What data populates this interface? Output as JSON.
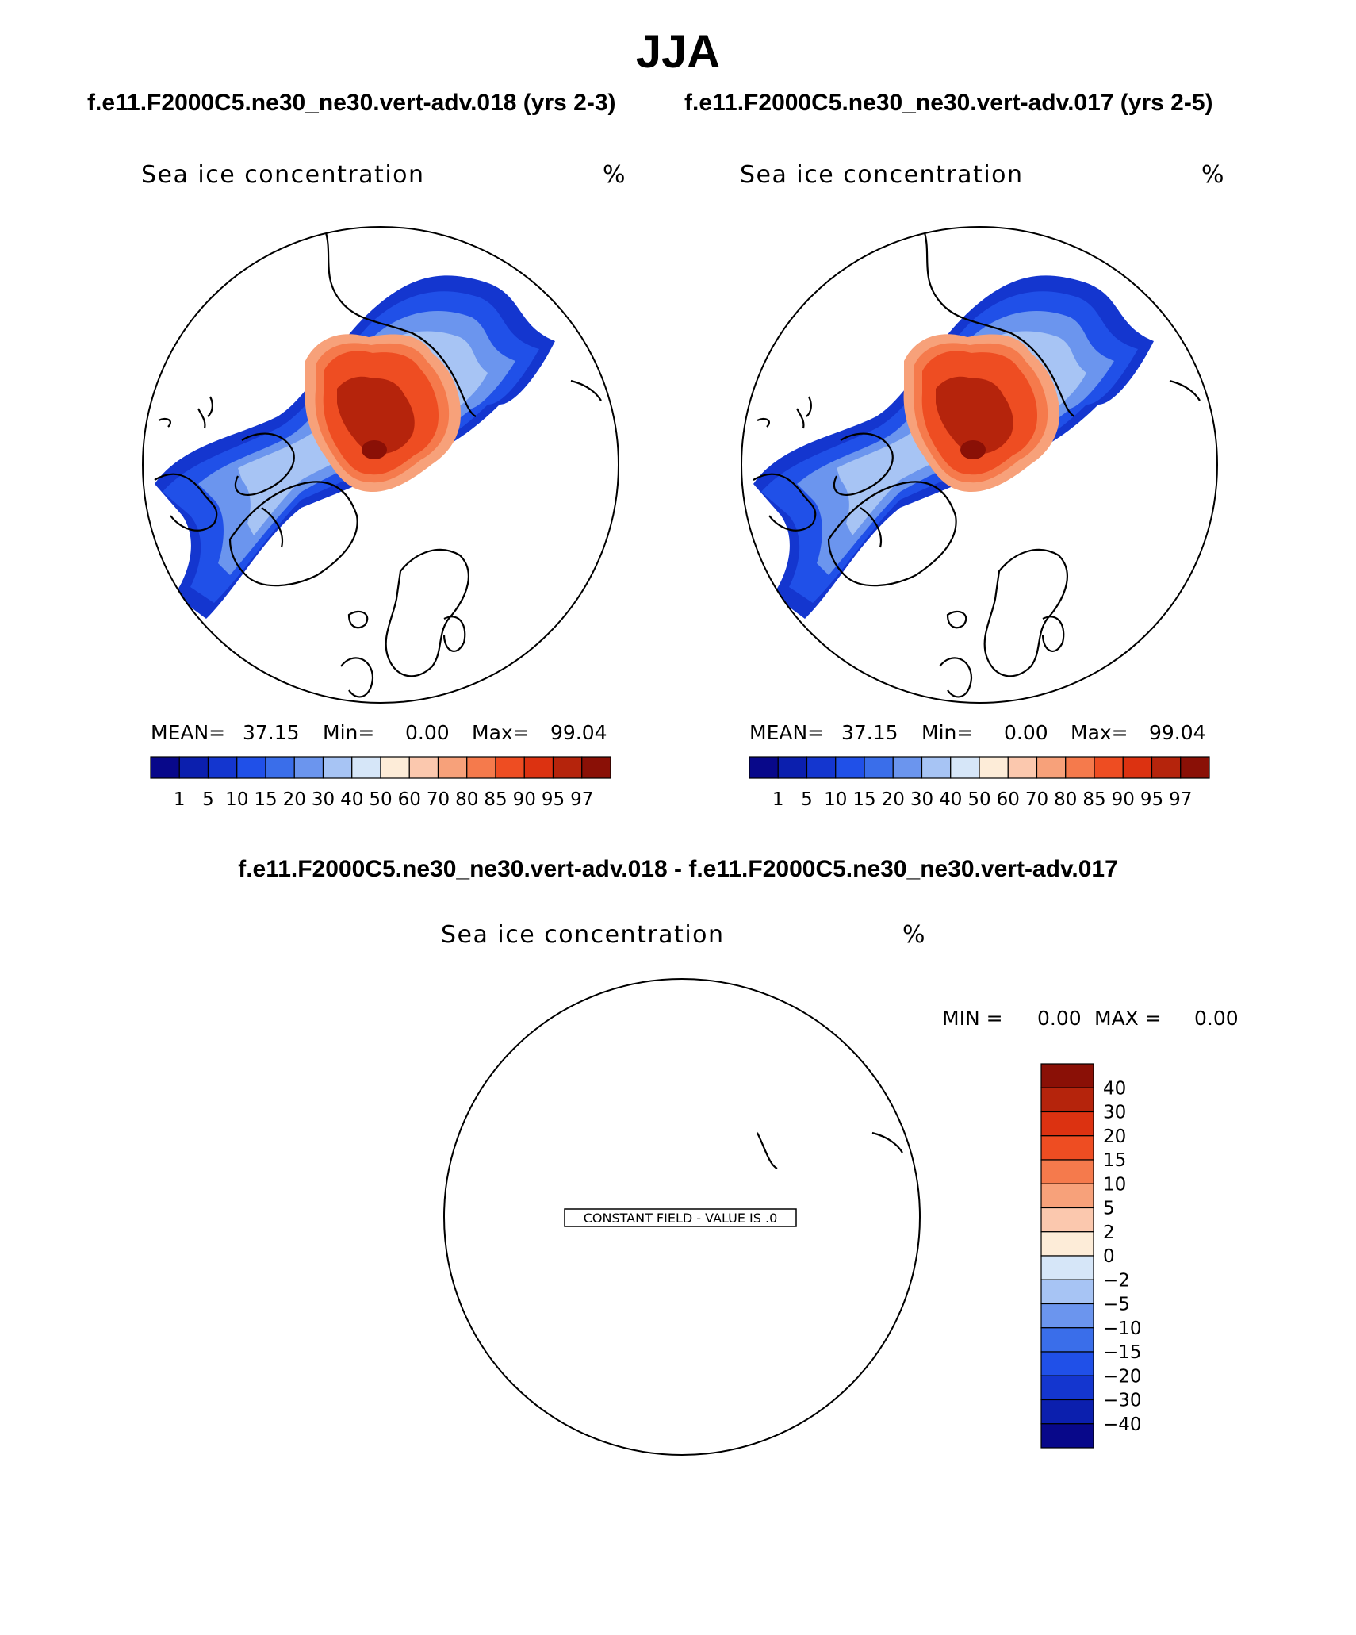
{
  "header": {
    "title": "JJA",
    "case_left": "f.e11.F2000C5.ne30_ne30.vert-adv.018 (yrs 2-3)",
    "case_right": "f.e11.F2000C5.ne30_ne30.vert-adv.017 (yrs 2-5)",
    "diff_title": "f.e11.F2000C5.ne30_ne30.vert-adv.018 - f.e11.F2000C5.ne30_ne30.vert-adv.017"
  },
  "chart_data": [
    {
      "type": "heatmap",
      "projection": "north polar stereographic",
      "title": "Sea ice concentration",
      "units": "%",
      "stats": {
        "mean_label": "MEAN=",
        "mean": "37.15",
        "min_label": "Min=",
        "min": "0.00",
        "max_label": "Max=",
        "max": "99.04"
      },
      "levels": [
        "1",
        "5",
        "10",
        "15",
        "20",
        "30",
        "40",
        "50",
        "60",
        "70",
        "80",
        "85",
        "90",
        "95",
        "97"
      ],
      "colors": [
        "#08088a",
        "#0b1fae",
        "#1436cf",
        "#2050e8",
        "#3a6eea",
        "#6b95ee",
        "#a7c4f4",
        "#d6e6f8",
        "#fdecd8",
        "#fbc8ae",
        "#f7a17a",
        "#f57a4c",
        "#ee4d22",
        "#dc3211",
        "#b5240c",
        "#8a1006"
      ]
    },
    {
      "type": "heatmap",
      "projection": "north polar stereographic",
      "title": "Sea ice concentration",
      "units": "%",
      "stats": {
        "mean_label": "MEAN=",
        "mean": "37.15",
        "min_label": "Min=",
        "min": "0.00",
        "max_label": "Max=",
        "max": "99.04"
      },
      "levels": [
        "1",
        "5",
        "10",
        "15",
        "20",
        "30",
        "40",
        "50",
        "60",
        "70",
        "80",
        "85",
        "90",
        "95",
        "97"
      ],
      "colors": [
        "#08088a",
        "#0b1fae",
        "#1436cf",
        "#2050e8",
        "#3a6eea",
        "#6b95ee",
        "#a7c4f4",
        "#d6e6f8",
        "#fdecd8",
        "#fbc8ae",
        "#f7a17a",
        "#f57a4c",
        "#ee4d22",
        "#dc3211",
        "#b5240c",
        "#8a1006"
      ]
    },
    {
      "type": "heatmap",
      "projection": "north polar stereographic",
      "title": "Sea ice concentration",
      "units": "%",
      "constant_field_label": "CONSTANT FIELD - VALUE IS .0",
      "stats": {
        "min_label": "MIN =",
        "min": "0.00",
        "max_label": "MAX =",
        "max": "0.00"
      },
      "levels": [
        "40",
        "30",
        "20",
        "15",
        "10",
        "5",
        "2",
        "0",
        "−2",
        "−5",
        "−10",
        "−15",
        "−20",
        "−30",
        "−40"
      ],
      "colors": [
        "#8a1006",
        "#b5240c",
        "#dc3211",
        "#ee4d22",
        "#f57a4c",
        "#f7a17a",
        "#fbc8ae",
        "#fdecd8",
        "#d6e6f8",
        "#a7c4f4",
        "#6b95ee",
        "#3a6eea",
        "#2050e8",
        "#1436cf",
        "#0b1fae",
        "#08088a"
      ]
    }
  ]
}
